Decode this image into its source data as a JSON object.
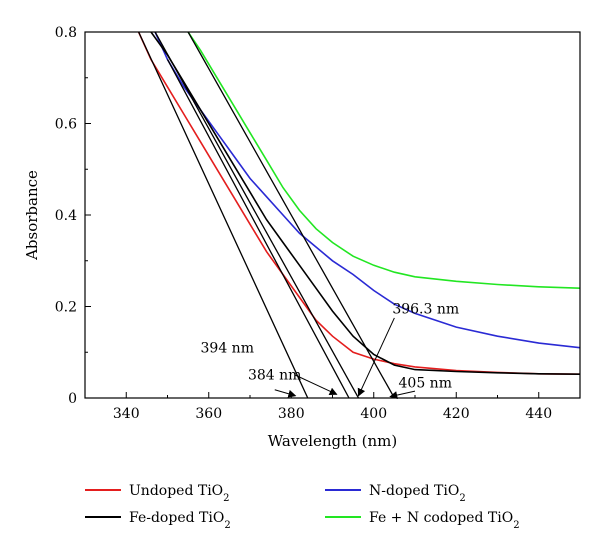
{
  "chart_data": {
    "type": "line",
    "xlabel": "Wavelength (nm)",
    "ylabel": "Absorbance",
    "xlim": [
      330,
      450
    ],
    "ylim": [
      0,
      0.8
    ],
    "xticks": [
      340,
      360,
      380,
      400,
      420,
      440
    ],
    "xtick_labels": [
      "340",
      "360",
      "380",
      "400",
      "420",
      "440"
    ],
    "yticks": [
      0,
      0.2,
      0.4,
      0.6,
      0.8
    ],
    "ytick_labels": [
      "0",
      "0.2",
      "0.4",
      "0.6",
      "0.8"
    ],
    "grid": false,
    "legend_position": "bottom",
    "series": [
      {
        "name": "Undoped TiO2",
        "legend_text": "Undoped TiO",
        "color": "#e41e1e",
        "x": [
          343,
          346,
          350,
          354,
          358,
          362,
          366,
          370,
          374,
          378,
          382,
          386,
          390,
          395,
          400,
          405,
          410,
          420,
          430,
          440,
          450
        ],
        "y": [
          0.8,
          0.74,
          0.68,
          0.62,
          0.56,
          0.5,
          0.44,
          0.38,
          0.32,
          0.27,
          0.22,
          0.17,
          0.135,
          0.1,
          0.085,
          0.075,
          0.068,
          0.06,
          0.056,
          0.053,
          0.052
        ]
      },
      {
        "name": "N-doped TiO2",
        "legend_text": "N-doped TiO",
        "color": "#2a2ad4",
        "x": [
          347,
          350,
          354,
          358,
          362,
          366,
          370,
          374,
          378,
          382,
          386,
          390,
          395,
          400,
          405,
          410,
          420,
          430,
          440,
          450
        ],
        "y": [
          0.8,
          0.74,
          0.68,
          0.63,
          0.58,
          0.53,
          0.48,
          0.44,
          0.4,
          0.36,
          0.33,
          0.3,
          0.27,
          0.235,
          0.205,
          0.185,
          0.155,
          0.135,
          0.12,
          0.11
        ]
      },
      {
        "name": "Fe-doped TiO2",
        "legend_text": "Fe-doped TiO",
        "color": "#000000",
        "x": [
          346,
          350,
          354,
          358,
          362,
          366,
          370,
          374,
          378,
          382,
          386,
          390,
          395,
          400,
          405,
          410,
          420,
          430,
          440,
          450
        ],
        "y": [
          0.8,
          0.75,
          0.69,
          0.63,
          0.57,
          0.51,
          0.45,
          0.39,
          0.34,
          0.29,
          0.24,
          0.19,
          0.135,
          0.095,
          0.072,
          0.062,
          0.058,
          0.055,
          0.053,
          0.052
        ]
      },
      {
        "name": "Fe + N codoped TiO2",
        "legend_text": "Fe + N codoped TiO",
        "color": "#22e622",
        "x": [
          355,
          358,
          362,
          366,
          370,
          374,
          378,
          382,
          386,
          390,
          395,
          400,
          405,
          410,
          420,
          430,
          440,
          450
        ],
        "y": [
          0.8,
          0.76,
          0.7,
          0.64,
          0.58,
          0.52,
          0.46,
          0.41,
          0.37,
          0.34,
          0.31,
          0.29,
          0.275,
          0.265,
          0.255,
          0.248,
          0.243,
          0.24
        ]
      }
    ],
    "tangent_lines": [
      {
        "x1": 343,
        "y1": 0.8,
        "x2": 384,
        "y2": 0
      },
      {
        "x1": 350,
        "y1": 0.74,
        "x2": 394,
        "y2": 0
      },
      {
        "x1": 347,
        "y1": 0.8,
        "x2": 396.3,
        "y2": 0
      },
      {
        "x1": 355,
        "y1": 0.8,
        "x2": 405,
        "y2": 0
      }
    ],
    "annotations": [
      {
        "text": "384 nm",
        "tx": 369.5,
        "ty": 0.04,
        "ax1": 376,
        "ay1": 0.018,
        "ax2": 381,
        "ay2": 0.005
      },
      {
        "text": "394 nm",
        "tx": 358,
        "ty": 0.1,
        "ax1": 381,
        "ay1": 0.05,
        "ax2": 391,
        "ay2": 0.008
      },
      {
        "text": "396.3 nm",
        "tx": 404.5,
        "ty": 0.185,
        "ax1": 405,
        "ay1": 0.175,
        "ax2": 396.3,
        "ay2": 0.005
      },
      {
        "text": "405 nm",
        "tx": 406,
        "ty": 0.023,
        "ax1": 410,
        "ay1": 0.015,
        "ax2": 404,
        "ay2": 0.003
      }
    ]
  }
}
